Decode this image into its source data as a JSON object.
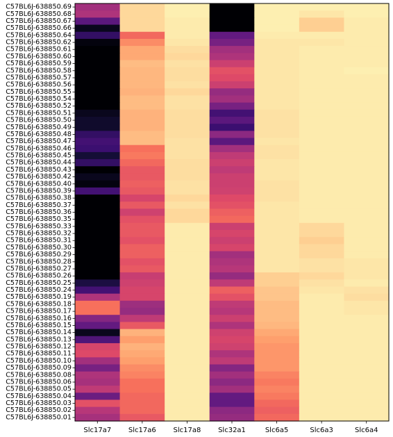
{
  "chart_data": {
    "type": "heatmap",
    "title": "",
    "xlabel": "",
    "ylabel": "",
    "colormap": "magma",
    "value_range": [
      0,
      1
    ],
    "columns": [
      "Slc17a7",
      "Slc17a6",
      "Slc17a8",
      "Slc32a1",
      "Slc6a5",
      "Slc6a3",
      "Slc6a4"
    ],
    "rows": [
      "C57BL6J-638850.69",
      "C57BL6J-638850.68",
      "C57BL6J-638850.67",
      "C57BL6J-638850.66",
      "C57BL6J-638850.64",
      "C57BL6J-638850.62",
      "C57BL6J-638850.61",
      "C57BL6J-638850.60",
      "C57BL6J-638850.59",
      "C57BL6J-638850.58",
      "C57BL6J-638850.57",
      "C57BL6J-638850.56",
      "C57BL6J-638850.55",
      "C57BL6J-638850.54",
      "C57BL6J-638850.52",
      "C57BL6J-638850.51",
      "C57BL6J-638850.50",
      "C57BL6J-638850.49",
      "C57BL6J-638850.48",
      "C57BL6J-638850.47",
      "C57BL6J-638850.46",
      "C57BL6J-638850.45",
      "C57BL6J-638850.44",
      "C57BL6J-638850.43",
      "C57BL6J-638850.42",
      "C57BL6J-638850.40",
      "C57BL6J-638850.39",
      "C57BL6J-638850.38",
      "C57BL6J-638850.37",
      "C57BL6J-638850.36",
      "C57BL6J-638850.35",
      "C57BL6J-638850.33",
      "C57BL6J-638850.32",
      "C57BL6J-638850.31",
      "C57BL6J-638850.30",
      "C57BL6J-638850.29",
      "C57BL6J-638850.28",
      "C57BL6J-638850.27",
      "C57BL6J-638850.26",
      "C57BL6J-638850.25",
      "C57BL6J-638850.24",
      "C57BL6J-638850.19",
      "C57BL6J-638850.18",
      "C57BL6J-638850.17",
      "C57BL6J-638850.16",
      "C57BL6J-638850.15",
      "C57BL6J-638850.14",
      "C57BL6J-638850.13",
      "C57BL6J-638850.12",
      "C57BL6J-638850.11",
      "C57BL6J-638850.10",
      "C57BL6J-638850.09",
      "C57BL6J-638850.08",
      "C57BL6J-638850.06",
      "C57BL6J-638850.05",
      "C57BL6J-638850.04",
      "C57BL6J-638850.03",
      "C57BL6J-638850.02",
      "C57BL6J-638850.01"
    ],
    "values": [
      [
        0.45,
        0.92,
        0.97,
        0.0,
        0.97,
        0.97,
        0.97
      ],
      [
        0.48,
        0.92,
        0.97,
        0.0,
        0.97,
        0.95,
        0.97
      ],
      [
        0.28,
        0.92,
        0.96,
        0.0,
        0.97,
        0.9,
        0.96
      ],
      [
        0.05,
        0.92,
        0.96,
        0.0,
        0.97,
        0.9,
        0.96
      ],
      [
        0.18,
        0.68,
        0.96,
        0.3,
        0.96,
        0.96,
        0.96
      ],
      [
        0.02,
        0.76,
        0.95,
        0.35,
        0.95,
        0.95,
        0.96
      ],
      [
        0.0,
        0.82,
        0.93,
        0.45,
        0.95,
        0.96,
        0.96
      ],
      [
        0.0,
        0.82,
        0.92,
        0.48,
        0.95,
        0.96,
        0.96
      ],
      [
        0.0,
        0.86,
        0.94,
        0.55,
        0.95,
        0.96,
        0.96
      ],
      [
        0.0,
        0.85,
        0.93,
        0.62,
        0.95,
        0.96,
        0.97
      ],
      [
        0.0,
        0.85,
        0.93,
        0.6,
        0.95,
        0.96,
        0.96
      ],
      [
        0.0,
        0.85,
        0.94,
        0.55,
        0.95,
        0.96,
        0.96
      ],
      [
        0.0,
        0.84,
        0.92,
        0.42,
        0.95,
        0.96,
        0.96
      ],
      [
        0.0,
        0.86,
        0.94,
        0.45,
        0.95,
        0.96,
        0.96
      ],
      [
        0.0,
        0.86,
        0.94,
        0.35,
        0.95,
        0.96,
        0.96
      ],
      [
        0.05,
        0.84,
        0.93,
        0.22,
        0.94,
        0.96,
        0.96
      ],
      [
        0.08,
        0.84,
        0.93,
        0.28,
        0.94,
        0.96,
        0.96
      ],
      [
        0.08,
        0.84,
        0.93,
        0.2,
        0.94,
        0.96,
        0.96
      ],
      [
        0.18,
        0.86,
        0.93,
        0.4,
        0.94,
        0.96,
        0.96
      ],
      [
        0.22,
        0.86,
        0.94,
        0.28,
        0.95,
        0.96,
        0.96
      ],
      [
        0.2,
        0.7,
        0.94,
        0.45,
        0.94,
        0.96,
        0.96
      ],
      [
        0.1,
        0.72,
        0.94,
        0.52,
        0.94,
        0.96,
        0.96
      ],
      [
        0.18,
        0.68,
        0.93,
        0.55,
        0.95,
        0.96,
        0.96
      ],
      [
        0.0,
        0.64,
        0.93,
        0.52,
        0.95,
        0.96,
        0.96
      ],
      [
        0.05,
        0.64,
        0.93,
        0.55,
        0.95,
        0.96,
        0.96
      ],
      [
        0.02,
        0.66,
        0.94,
        0.55,
        0.94,
        0.96,
        0.96
      ],
      [
        0.22,
        0.64,
        0.94,
        0.56,
        0.94,
        0.96,
        0.96
      ],
      [
        0.0,
        0.58,
        0.92,
        0.6,
        0.94,
        0.96,
        0.96
      ],
      [
        0.0,
        0.64,
        0.94,
        0.62,
        0.95,
        0.96,
        0.96
      ],
      [
        0.0,
        0.56,
        0.92,
        0.66,
        0.95,
        0.96,
        0.96
      ],
      [
        0.0,
        0.62,
        0.92,
        0.68,
        0.95,
        0.96,
        0.96
      ],
      [
        0.0,
        0.64,
        0.96,
        0.55,
        0.95,
        0.92,
        0.96
      ],
      [
        0.0,
        0.64,
        0.96,
        0.58,
        0.95,
        0.92,
        0.96
      ],
      [
        0.0,
        0.62,
        0.96,
        0.55,
        0.95,
        0.9,
        0.96
      ],
      [
        0.0,
        0.66,
        0.96,
        0.58,
        0.95,
        0.92,
        0.96
      ],
      [
        0.0,
        0.66,
        0.96,
        0.45,
        0.95,
        0.92,
        0.96
      ],
      [
        0.0,
        0.62,
        0.96,
        0.48,
        0.95,
        0.94,
        0.95
      ],
      [
        0.0,
        0.64,
        0.96,
        0.5,
        0.95,
        0.94,
        0.95
      ],
      [
        0.0,
        0.54,
        0.96,
        0.42,
        0.9,
        0.92,
        0.95
      ],
      [
        0.12,
        0.56,
        0.96,
        0.52,
        0.9,
        0.94,
        0.96
      ],
      [
        0.22,
        0.58,
        0.96,
        0.66,
        0.88,
        0.95,
        0.94
      ],
      [
        0.48,
        0.58,
        0.96,
        0.62,
        0.88,
        0.96,
        0.93
      ],
      [
        0.7,
        0.44,
        0.96,
        0.52,
        0.86,
        0.96,
        0.95
      ],
      [
        0.7,
        0.42,
        0.96,
        0.5,
        0.86,
        0.96,
        0.95
      ],
      [
        0.38,
        0.52,
        0.96,
        0.55,
        0.86,
        0.96,
        0.96
      ],
      [
        0.3,
        0.64,
        0.96,
        0.48,
        0.85,
        0.96,
        0.96
      ],
      [
        0.05,
        0.84,
        0.96,
        0.56,
        0.82,
        0.96,
        0.96
      ],
      [
        0.25,
        0.8,
        0.96,
        0.58,
        0.8,
        0.96,
        0.96
      ],
      [
        0.58,
        0.84,
        0.96,
        0.56,
        0.78,
        0.96,
        0.96
      ],
      [
        0.6,
        0.82,
        0.96,
        0.48,
        0.78,
        0.96,
        0.96
      ],
      [
        0.45,
        0.8,
        0.96,
        0.52,
        0.78,
        0.96,
        0.96
      ],
      [
        0.35,
        0.76,
        0.96,
        0.38,
        0.78,
        0.96,
        0.96
      ],
      [
        0.48,
        0.74,
        0.96,
        0.45,
        0.74,
        0.96,
        0.96
      ],
      [
        0.46,
        0.7,
        0.96,
        0.4,
        0.72,
        0.96,
        0.96
      ],
      [
        0.52,
        0.7,
        0.96,
        0.45,
        0.74,
        0.96,
        0.96
      ],
      [
        0.32,
        0.68,
        0.96,
        0.3,
        0.72,
        0.96,
        0.96
      ],
      [
        0.62,
        0.68,
        0.96,
        0.3,
        0.68,
        0.96,
        0.96
      ],
      [
        0.5,
        0.68,
        0.96,
        0.4,
        0.66,
        0.96,
        0.96
      ],
      [
        0.46,
        0.64,
        0.96,
        0.42,
        0.68,
        0.96,
        0.96
      ]
    ]
  }
}
